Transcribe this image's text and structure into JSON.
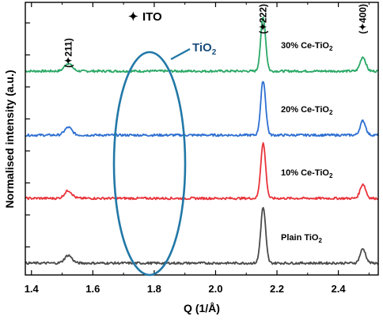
{
  "chart_data": {
    "type": "line",
    "xlabel": "Q (1/Å)",
    "ylabel": "Normalised intensity (a.u.)",
    "xlim": [
      1.38,
      2.53
    ],
    "x_ticks": [
      "1.4",
      "1.6",
      "1.8",
      "2.0",
      "2.2",
      "2.4"
    ],
    "x_tick_values": [
      1.4,
      1.6,
      1.8,
      2.0,
      2.2,
      2.4
    ],
    "grid": false,
    "legend": {
      "symbol": "✦",
      "text": "ITO"
    },
    "highlight": {
      "text": "TiO",
      "subscript": "2",
      "center_x": 1.8
    },
    "peak_labels": [
      {
        "label": "(✦211)",
        "x": 1.52
      },
      {
        "label": "(✦222)",
        "x": 2.155
      },
      {
        "label": "(✦400)",
        "x": 2.48
      }
    ],
    "series": [
      {
        "name": "30% Ce-TiO",
        "name_sub": "2",
        "color": "#2aa865",
        "baseline": 0.0,
        "peaks": [
          {
            "x": 1.52,
            "height": 0.12,
            "width": 0.012
          },
          {
            "x": 2.155,
            "height": 0.83,
            "width": 0.008
          },
          {
            "x": 2.48,
            "height": 0.22,
            "width": 0.009
          }
        ]
      },
      {
        "name": "20% Ce-TiO",
        "name_sub": "2",
        "color": "#2d6fd1",
        "baseline": 0.0,
        "peaks": [
          {
            "x": 1.52,
            "height": 0.12,
            "width": 0.012
          },
          {
            "x": 2.155,
            "height": 0.84,
            "width": 0.008
          },
          {
            "x": 2.48,
            "height": 0.22,
            "width": 0.009
          }
        ]
      },
      {
        "name": "10% Ce-TiO",
        "name_sub": "2",
        "color": "#e8333a",
        "baseline": 0.0,
        "peaks": [
          {
            "x": 1.52,
            "height": 0.12,
            "width": 0.012
          },
          {
            "x": 2.155,
            "height": 0.85,
            "width": 0.008
          },
          {
            "x": 2.48,
            "height": 0.22,
            "width": 0.009
          }
        ]
      },
      {
        "name": "Plain TiO",
        "name_sub": "2",
        "color": "#4a4a4a",
        "baseline": 0.0,
        "peaks": [
          {
            "x": 1.52,
            "height": 0.12,
            "width": 0.012
          },
          {
            "x": 2.155,
            "height": 0.86,
            "width": 0.008
          },
          {
            "x": 2.48,
            "height": 0.22,
            "width": 0.009
          }
        ]
      }
    ]
  }
}
